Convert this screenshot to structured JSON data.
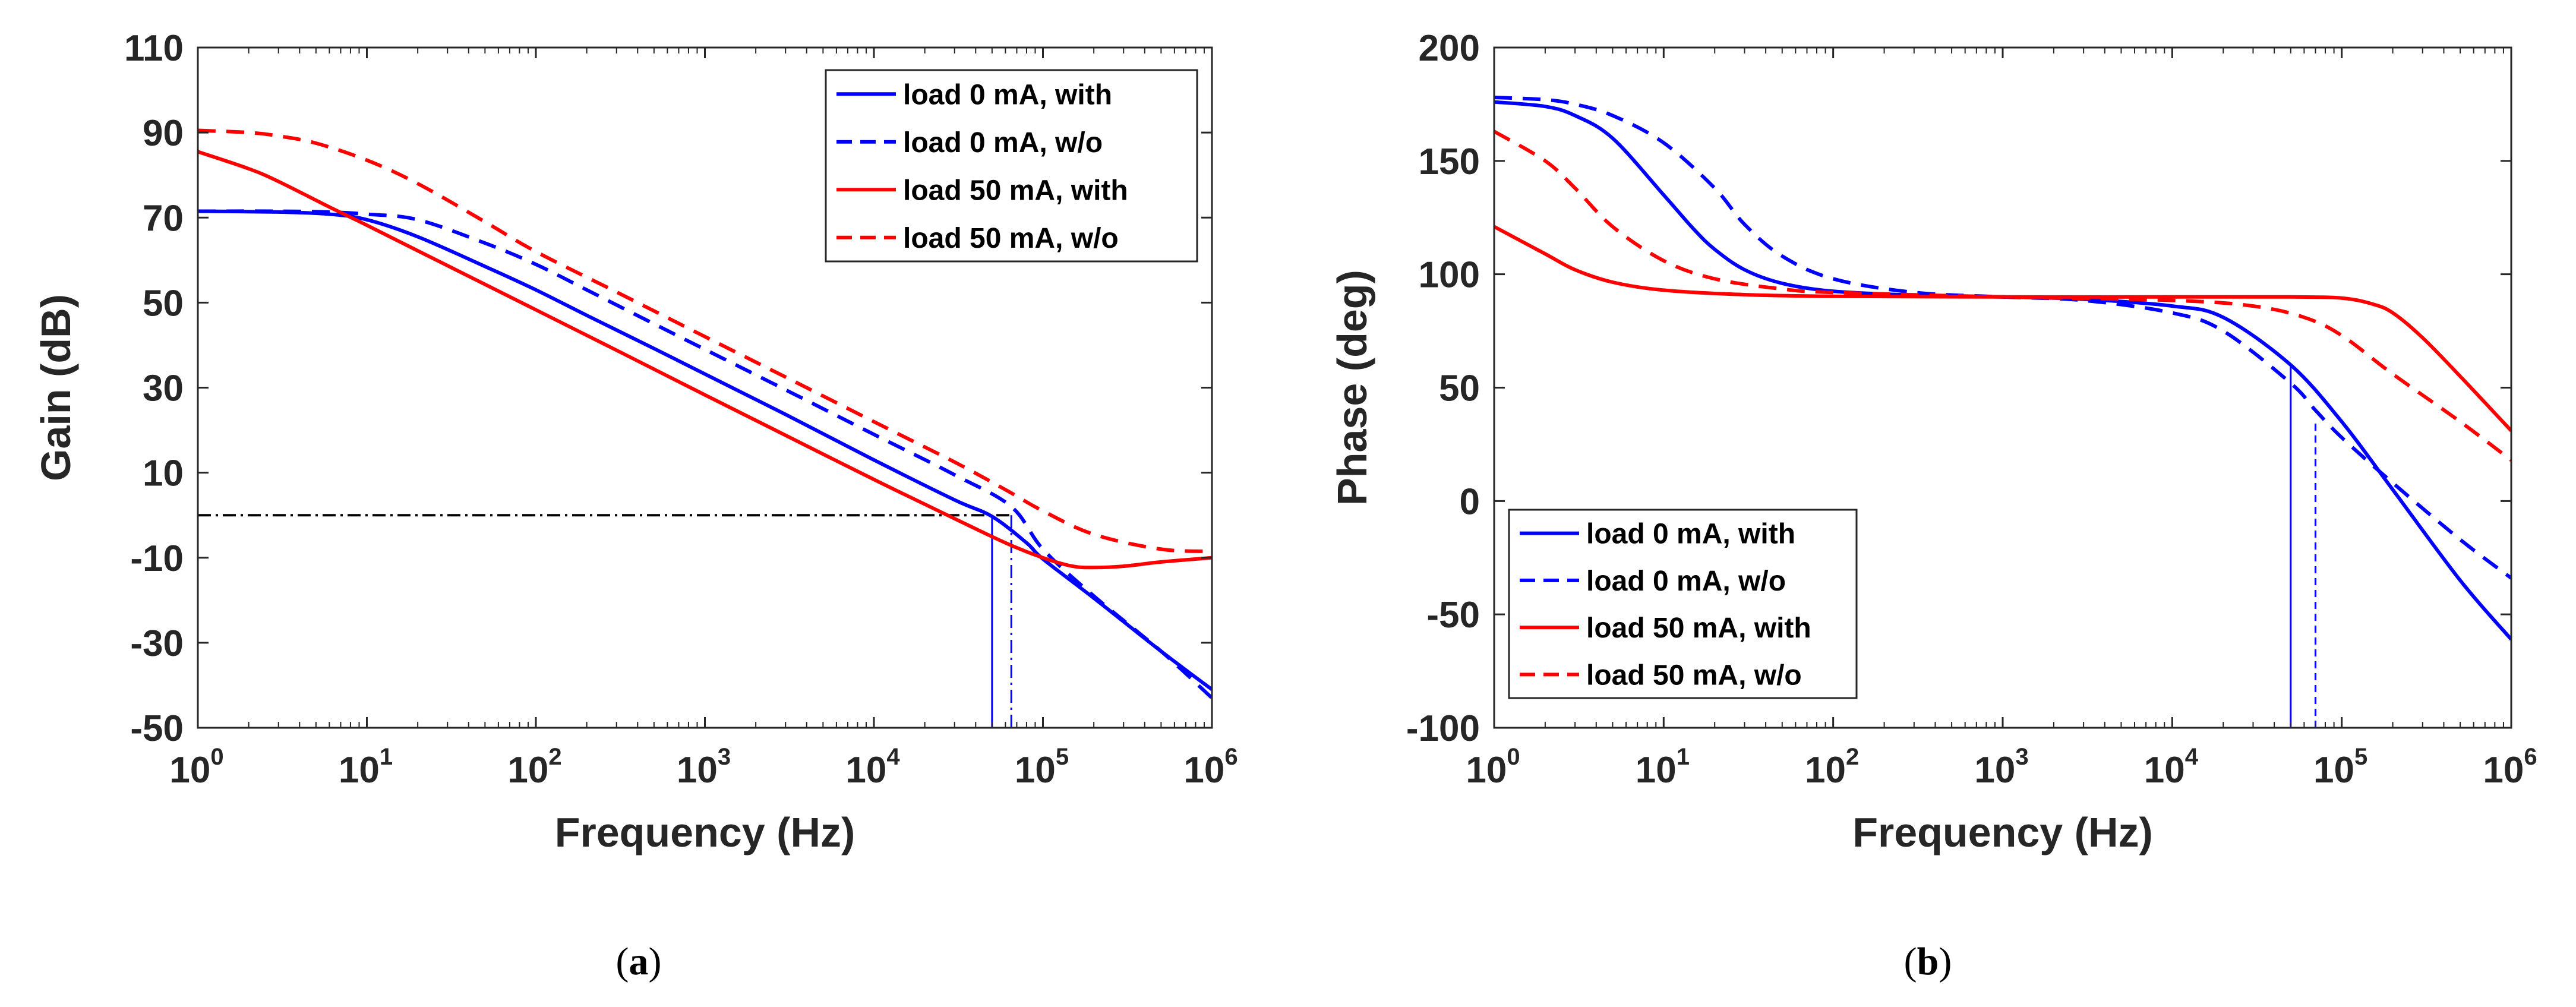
{
  "colors": {
    "with_blue": "#0000ff",
    "red": "#ff0000",
    "reference": "#000000",
    "axis": "#262626"
  },
  "chart_data": [
    {
      "type": "line",
      "panel": "a",
      "caption_letter": "a",
      "xlabel": "Frequency (Hz)",
      "ylabel": "Gain (dB)",
      "xscale": "log",
      "xlim": [
        1,
        1000000
      ],
      "ylim": [
        -50,
        110
      ],
      "xticks": [
        1,
        10,
        100,
        1000,
        10000,
        100000,
        1000000
      ],
      "xtick_labels": [
        {
          "base": "10",
          "exp": "0"
        },
        {
          "base": "10",
          "exp": "1"
        },
        {
          "base": "10",
          "exp": "2"
        },
        {
          "base": "10",
          "exp": "3"
        },
        {
          "base": "10",
          "exp": "4"
        },
        {
          "base": "10",
          "exp": "5"
        },
        {
          "base": "10",
          "exp": "6"
        }
      ],
      "yticks": [
        -50,
        -30,
        -10,
        10,
        30,
        50,
        70,
        90,
        110
      ],
      "ytick_labels": [
        "-50",
        "-30",
        "-10",
        "10",
        "30",
        "50",
        "70",
        "90",
        "110"
      ],
      "grid": false,
      "legend_position": "top-right",
      "series": [
        {
          "name": "load 0 mA, with",
          "color": "#0000ff",
          "dash": "solid",
          "x": [
            1,
            3,
            6,
            10,
            20,
            50,
            100,
            200,
            500,
            1000,
            3000,
            10000,
            30000,
            50000,
            80000,
            100000,
            200000,
            500000,
            1000000
          ],
          "y": [
            71.5,
            71.3,
            70.8,
            69.5,
            65.5,
            58.5,
            53,
            47,
            39.2,
            33.2,
            23.7,
            13,
            3.6,
            -0.3,
            -6.5,
            -10.3,
            -19.5,
            -32,
            -41
          ]
        },
        {
          "name": "load 0 mA, w/o",
          "color": "#0000ff",
          "dash": "dashed",
          "x": [
            1,
            3,
            6,
            10,
            20,
            50,
            100,
            200,
            500,
            1000,
            3000,
            10000,
            30000,
            65000,
            100000,
            200000,
            500000,
            1000000
          ],
          "y": [
            71.5,
            71.5,
            71.3,
            70.8,
            69.5,
            64,
            59,
            53,
            45,
            39,
            29.5,
            19,
            9.5,
            2,
            -8,
            -19,
            -32,
            -43
          ]
        },
        {
          "name": "load 50 mA, with",
          "color": "#ff0000",
          "dash": "solid",
          "x": [
            1,
            2,
            3,
            6,
            10,
            30,
            100,
            300,
            1000,
            3000,
            10000,
            30000,
            60000,
            100000,
            150000,
            200000,
            300000,
            500000,
            1000000
          ],
          "y": [
            85.5,
            81.5,
            78.5,
            72.5,
            68.2,
            58.7,
            48.3,
            38.8,
            28.3,
            18.8,
            8.4,
            -0.8,
            -6.5,
            -10,
            -12,
            -12.3,
            -12,
            -11,
            -10
          ]
        },
        {
          "name": "load 50 mA, w/o",
          "color": "#ff0000",
          "dash": "dashed",
          "x": [
            1,
            2,
            3,
            5,
            10,
            20,
            50,
            100,
            300,
            1000,
            3000,
            10000,
            30000,
            60000,
            100000,
            200000,
            500000,
            1000000
          ],
          "y": [
            90.5,
            90,
            89.2,
            87.5,
            83.5,
            78,
            69,
            62,
            52.5,
            42,
            32.5,
            22,
            12.5,
            6,
            1,
            -4.5,
            -8,
            -8.5
          ]
        }
      ],
      "reference_lines": [
        {
          "kind": "hline-dashdot",
          "y": 0,
          "x_from": 1,
          "x_to": 65000,
          "color": "#000000"
        },
        {
          "kind": "vline-solid",
          "x": 50000,
          "y_from": -50,
          "y_to": 0,
          "color": "#0000ff"
        },
        {
          "kind": "vline-dashdot",
          "x": 65000,
          "y_from": -50,
          "y_to": 0,
          "color": "#0000ff"
        }
      ]
    },
    {
      "type": "line",
      "panel": "b",
      "caption_letter": "b",
      "xlabel": "Frequency (Hz)",
      "ylabel": "Phase (deg)",
      "xscale": "log",
      "xlim": [
        1,
        1000000
      ],
      "ylim": [
        -100,
        200
      ],
      "xticks": [
        1,
        10,
        100,
        1000,
        10000,
        100000,
        1000000
      ],
      "xtick_labels": [
        {
          "base": "10",
          "exp": "0"
        },
        {
          "base": "10",
          "exp": "1"
        },
        {
          "base": "10",
          "exp": "2"
        },
        {
          "base": "10",
          "exp": "3"
        },
        {
          "base": "10",
          "exp": "4"
        },
        {
          "base": "10",
          "exp": "5"
        },
        {
          "base": "10",
          "exp": "6"
        }
      ],
      "yticks": [
        -100,
        -50,
        0,
        50,
        100,
        150,
        200
      ],
      "ytick_labels": [
        "-100",
        "-50",
        "0",
        "50",
        "100",
        "150",
        "200"
      ],
      "grid": false,
      "legend_position": "bottom-left",
      "series": [
        {
          "name": "load 0 mA, with",
          "color": "#0000ff",
          "dash": "solid",
          "x": [
            1,
            2,
            3,
            5,
            10,
            15,
            20,
            30,
            50,
            100,
            300,
            1000,
            3000,
            10000,
            20000,
            50000,
            100000,
            200000,
            500000,
            1000000
          ],
          "y": [
            176,
            174,
            170,
            160,
            135,
            120,
            111,
            102,
            96,
            92.5,
            90.8,
            90,
            89,
            86,
            81,
            60,
            35,
            5,
            -35,
            -61
          ]
        },
        {
          "name": "load 0 mA, w/o",
          "color": "#0000ff",
          "dash": "dashed",
          "x": [
            1,
            2,
            3,
            5,
            10,
            20,
            30,
            50,
            100,
            300,
            1000,
            3000,
            10000,
            20000,
            50000,
            70000,
            100000,
            200000,
            500000,
            1000000
          ],
          "y": [
            178,
            177,
            175,
            170,
            158,
            138,
            122,
            108,
            98,
            92,
            90,
            88.5,
            83,
            75,
            52,
            40,
            28,
            8,
            -17,
            -34
          ]
        },
        {
          "name": "load 50 mA, with",
          "color": "#ff0000",
          "dash": "solid",
          "x": [
            1,
            2,
            3,
            5,
            10,
            30,
            100,
            1000,
            10000,
            50000,
            100000,
            150000,
            200000,
            300000,
            500000,
            1000000
          ],
          "y": [
            121,
            109,
            102,
            96.5,
            93,
            91,
            90.3,
            90,
            90,
            90,
            89.5,
            87,
            83,
            72,
            55,
            31
          ]
        },
        {
          "name": "load 50 mA, w/o",
          "color": "#ff0000",
          "dash": "dashed",
          "x": [
            1,
            2,
            3,
            5,
            10,
            20,
            50,
            100,
            1000,
            10000,
            30000,
            60000,
            100000,
            200000,
            500000,
            1000000
          ],
          "y": [
            163,
            150,
            138,
            121,
            106,
            98,
            93.5,
            92,
            90,
            88.5,
            86,
            81,
            73,
            56,
            35,
            18
          ]
        }
      ],
      "reference_lines": [
        {
          "kind": "vline-solid",
          "x": 50000,
          "y_from": -100,
          "y_to": 60,
          "color": "#0000ff"
        },
        {
          "kind": "vline-dashed",
          "x": 70000,
          "y_from": -100,
          "y_to": 35,
          "color": "#0000ff"
        }
      ]
    }
  ]
}
